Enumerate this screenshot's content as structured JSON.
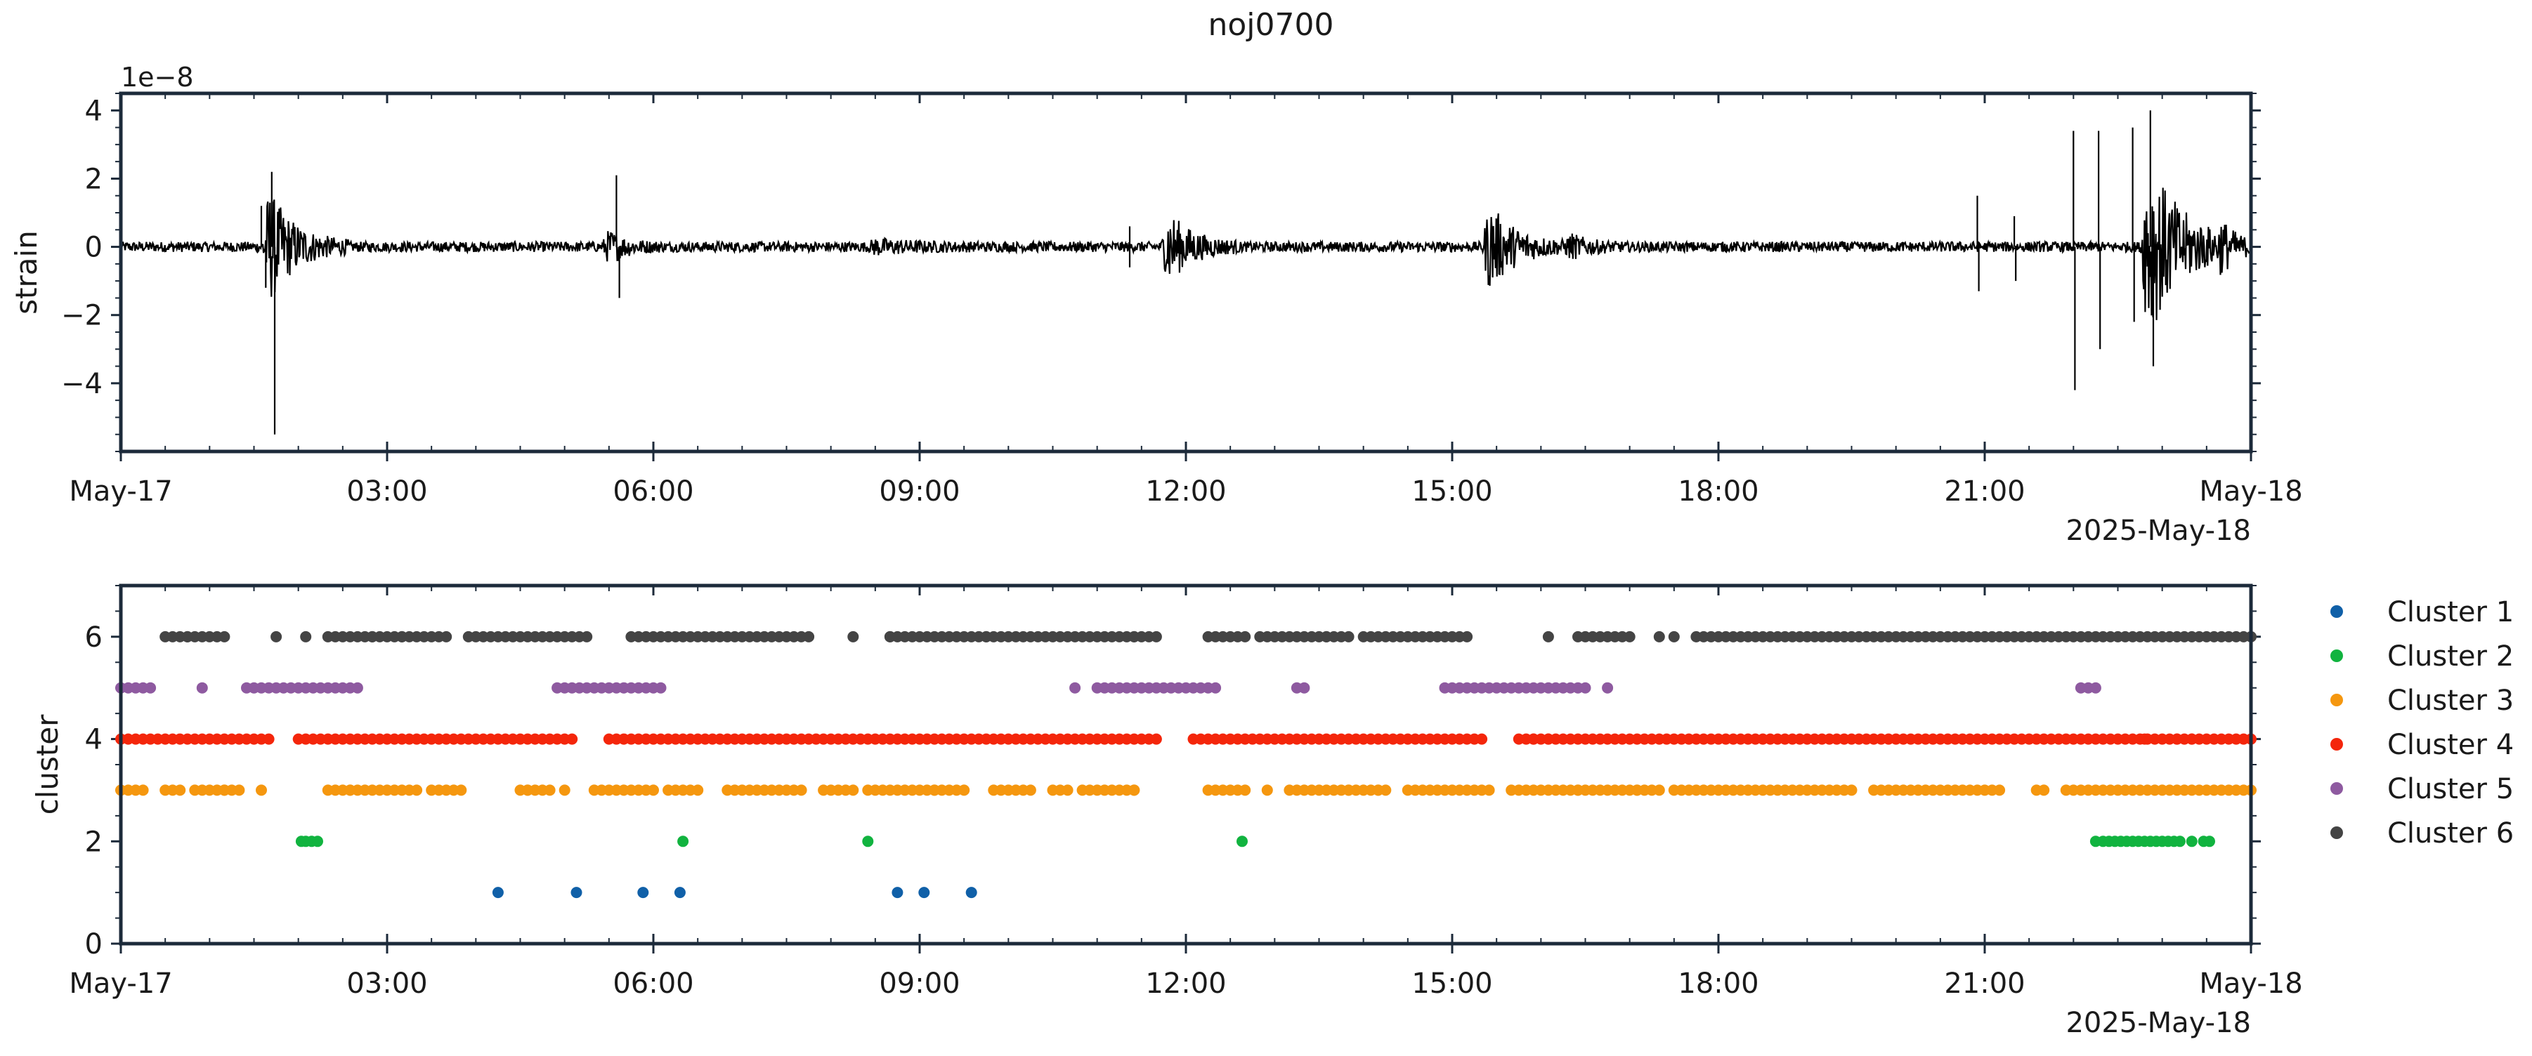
{
  "title": "noj0700",
  "colors": {
    "frame": "#1c2a3a",
    "strain_line": "#000000",
    "cluster_1": "#1060a8",
    "cluster_2": "#11b33f",
    "cluster_3": "#f5970f",
    "cluster_4": "#f4260b",
    "cluster_5": "#8e5aa0",
    "cluster_6": "#444444"
  },
  "chart_data": [
    {
      "type": "line",
      "ylabel": "strain",
      "offset_label": "1e−8",
      "x_range": [
        "2025-05-17T00:00",
        "2025-05-18T00:00"
      ],
      "ylim": [
        -6.0,
        4.5
      ],
      "y_scale_factor": 1e-08,
      "x_tick_labels": [
        "May-17",
        "03:00",
        "06:00",
        "09:00",
        "12:00",
        "15:00",
        "18:00",
        "21:00",
        "May-18"
      ],
      "x_offset_label": "2025-May-18",
      "y_ticks": [
        -4,
        -2,
        0,
        2,
        4
      ],
      "y_tick_labels": [
        "−4",
        "−2",
        "0",
        "2",
        "4"
      ],
      "baseline_amplitude": 0.15,
      "bursts": [
        {
          "center": "01:40",
          "duration_h": 0.9,
          "amplitude": 1.6
        },
        {
          "center": "05:30",
          "duration_h": 0.6,
          "amplitude": 0.4
        },
        {
          "center": "08:30",
          "duration_h": 1.2,
          "amplitude": 0.15
        },
        {
          "center": "11:48",
          "duration_h": 0.8,
          "amplitude": 1.0
        },
        {
          "center": "15:25",
          "duration_h": 0.9,
          "amplitude": 1.2
        },
        {
          "center": "16:20",
          "duration_h": 0.6,
          "amplitude": 0.3
        },
        {
          "center": "22:50",
          "duration_h": 1.2,
          "amplitude": 2.6
        },
        {
          "center": "23:40",
          "duration_h": 0.5,
          "amplitude": 0.8
        }
      ],
      "spikes": [
        {
          "time": "01:35",
          "value": 1.2
        },
        {
          "time": "01:38",
          "value": -1.2
        },
        {
          "time": "01:42",
          "value": 2.2
        },
        {
          "time": "01:44",
          "value": -5.5
        },
        {
          "time": "05:35",
          "value": 2.1
        },
        {
          "time": "05:37",
          "value": -1.5
        },
        {
          "time": "11:22",
          "value": 0.6
        },
        {
          "time": "11:22",
          "value": -0.6
        },
        {
          "time": "20:55",
          "value": 1.5
        },
        {
          "time": "20:56",
          "value": -1.3
        },
        {
          "time": "21:20",
          "value": 0.9
        },
        {
          "time": "21:21",
          "value": -1.0
        },
        {
          "time": "22:00",
          "value": 3.4
        },
        {
          "time": "22:01",
          "value": -4.2
        },
        {
          "time": "22:17",
          "value": 3.4
        },
        {
          "time": "22:18",
          "value": -3.0
        },
        {
          "time": "22:40",
          "value": 3.5
        },
        {
          "time": "22:41",
          "value": -2.2
        },
        {
          "time": "22:52",
          "value": 4.0
        },
        {
          "time": "22:54",
          "value": -3.5
        }
      ]
    },
    {
      "type": "scatter",
      "ylabel": "cluster",
      "x_range": [
        "2025-05-17T00:00",
        "2025-05-18T00:00"
      ],
      "ylim": [
        0,
        7
      ],
      "x_tick_labels": [
        "May-17",
        "03:00",
        "06:00",
        "09:00",
        "12:00",
        "15:00",
        "18:00",
        "21:00",
        "May-18"
      ],
      "x_offset_label": "2025-May-18",
      "y_ticks": [
        0,
        2,
        4,
        6
      ],
      "y_tick_labels": [
        "0",
        "2",
        "4",
        "6"
      ],
      "legend_position": "outside-right",
      "series": [
        {
          "name": "Cluster 1",
          "y": 1,
          "x": [
            "04:15",
            "05:08",
            "05:53",
            "06:18",
            "08:45",
            "09:03",
            "09:35"
          ]
        },
        {
          "name": "Cluster 2",
          "y": 2,
          "x": [
            "02:02",
            "02:05",
            "02:09",
            "02:13",
            "06:20",
            "08:25",
            "12:38",
            "22:15",
            "22:20",
            "22:24",
            "22:28",
            "22:32",
            "22:36",
            "22:40",
            "22:44",
            "22:48",
            "22:52",
            "22:56",
            "23:00",
            "23:04",
            "23:08",
            "23:12",
            "23:20",
            "23:28",
            "23:32"
          ]
        },
        {
          "name": "Cluster 3",
          "y": 3,
          "ranges": [
            [
              "00:00",
              "00:15"
            ],
            [
              "00:30",
              "00:40"
            ],
            [
              "00:50",
              "01:20"
            ],
            [
              "02:20",
              "03:20"
            ],
            [
              "03:30",
              "03:50"
            ],
            [
              "04:30",
              "04:50"
            ],
            [
              "05:20",
              "06:00"
            ],
            [
              "06:10",
              "06:30"
            ],
            [
              "06:50",
              "07:40"
            ],
            [
              "07:55",
              "08:15"
            ],
            [
              "08:25",
              "09:30"
            ],
            [
              "09:50",
              "10:10"
            ],
            [
              "10:30",
              "10:40"
            ],
            [
              "10:50",
              "11:25"
            ],
            [
              "12:15",
              "12:40"
            ],
            [
              "13:10",
              "13:30"
            ],
            [
              "13:35",
              "14:15"
            ],
            [
              "14:30",
              "15:25"
            ],
            [
              "15:40",
              "16:30"
            ],
            [
              "16:35",
              "17:20"
            ],
            [
              "17:30",
              "19:30"
            ],
            [
              "19:45",
              "21:10"
            ],
            [
              "21:35",
              "21:40"
            ],
            [
              "21:55",
              "22:10"
            ],
            [
              "22:15",
              "24:00"
            ]
          ],
          "x": [
            "01:10",
            "01:35",
            "02:35",
            "04:35",
            "05:00",
            "09:10",
            "10:15",
            "11:25",
            "12:55",
            "13:50",
            "14:10",
            "16:25",
            "17:05"
          ]
        },
        {
          "name": "Cluster 4",
          "y": 4,
          "ranges": [
            [
              "00:00",
              "01:30"
            ],
            [
              "02:00",
              "05:05"
            ],
            [
              "05:30",
              "11:40"
            ],
            [
              "12:05",
              "15:20"
            ],
            [
              "15:45",
              "24:00"
            ]
          ],
          "x": [
            "01:35",
            "01:40",
            "15:55",
            "16:05",
            "22:48",
            "23:10",
            "23:20"
          ]
        },
        {
          "name": "Cluster 5",
          "y": 5,
          "ranges": [
            [
              "00:00",
              "00:20"
            ],
            [
              "01:25",
              "02:40"
            ],
            [
              "04:55",
              "05:25"
            ],
            [
              "05:30",
              "06:05"
            ],
            [
              "11:00",
              "12:20"
            ],
            [
              "14:55",
              "16:30"
            ],
            [
              "22:05",
              "22:15"
            ]
          ],
          "x": [
            "00:55",
            "10:45",
            "13:15",
            "13:20",
            "16:45"
          ]
        },
        {
          "name": "Cluster 6",
          "y": 6,
          "ranges": [
            [
              "00:30",
              "01:10"
            ],
            [
              "02:20",
              "03:40"
            ],
            [
              "03:55",
              "05:15"
            ],
            [
              "05:45",
              "07:45"
            ],
            [
              "08:40",
              "10:50"
            ],
            [
              "10:55",
              "11:40"
            ],
            [
              "12:15",
              "12:40"
            ],
            [
              "12:50",
              "13:50"
            ],
            [
              "14:00",
              "15:10"
            ],
            [
              "16:25",
              "17:00"
            ],
            [
              "17:45",
              "24:00"
            ]
          ],
          "x": [
            "00:45",
            "01:45",
            "02:05",
            "02:50",
            "03:10",
            "08:15",
            "08:40",
            "09:45",
            "11:25",
            "13:35",
            "16:05",
            "17:20",
            "17:30"
          ]
        }
      ]
    }
  ]
}
